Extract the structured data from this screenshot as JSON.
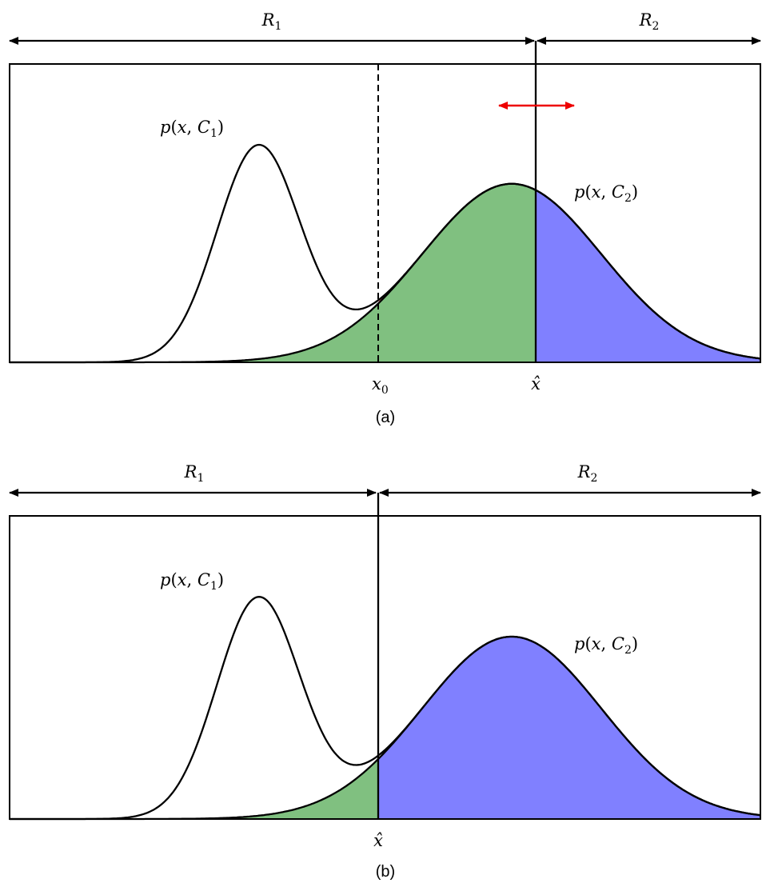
{
  "panels": [
    {
      "id": "a",
      "caption": "(a)",
      "region_left": {
        "name": "R",
        "sub": "1"
      },
      "region_right": {
        "name": "R",
        "sub": "2"
      },
      "class1_label": {
        "name": "C",
        "sub": "1"
      },
      "class2_label": {
        "name": "C",
        "sub": "2"
      },
      "x0_label": {
        "name": "x",
        "sub": "0"
      },
      "xhat_label": "x̂",
      "shows_suboptimal_threshold": true
    },
    {
      "id": "b",
      "caption": "(b)",
      "region_left": {
        "name": "R",
        "sub": "1"
      },
      "region_right": {
        "name": "R",
        "sub": "2"
      },
      "class1_label": {
        "name": "C",
        "sub": "1"
      },
      "class2_label": {
        "name": "C",
        "sub": "2"
      },
      "xhat_label": "x̂",
      "shows_suboptimal_threshold": false
    }
  ],
  "colors": {
    "error_red": "#ff8080",
    "error_green": "#80c080",
    "error_blue": "#8080ff",
    "move_arrow": "#ee0000",
    "curve": "#000000"
  }
}
